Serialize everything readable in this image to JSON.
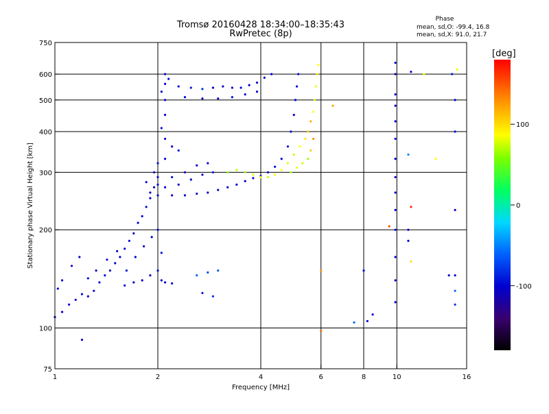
{
  "title": "Tromsø 20160428 18:34:00–18:35:43",
  "subtitle": "RwPretec (8p)",
  "stats": {
    "heading": "Phase",
    "line_o": "mean, sd,O: -99.4, 16.8",
    "line_x": "mean, sd,X:  91.0, 21.7"
  },
  "chart_data": {
    "type": "scatter",
    "xlabel": "Frequency [MHz]",
    "ylabel": "Stationary phase Virtual Height [km]",
    "x_scale": "log",
    "y_scale": "log",
    "xlim": [
      1,
      16
    ],
    "ylim": [
      75,
      750
    ],
    "x_ticks": [
      {
        "value": 1,
        "label": "1"
      },
      {
        "value": 2,
        "label": "2"
      },
      {
        "value": 4,
        "label": "4"
      },
      {
        "value": 6,
        "label": "6"
      },
      {
        "value": 8,
        "label": "8"
      },
      {
        "value": 10,
        "label": "10"
      },
      {
        "value": 16,
        "label": "16"
      }
    ],
    "y_ticks": [
      {
        "value": 75,
        "label": "75"
      },
      {
        "value": 100,
        "label": "100"
      },
      {
        "value": 200,
        "label": "200"
      },
      {
        "value": 300,
        "label": "300"
      },
      {
        "value": 400,
        "label": "400"
      },
      {
        "value": 500,
        "label": "500"
      },
      {
        "value": 600,
        "label": "600"
      },
      {
        "value": 750,
        "label": "750"
      }
    ],
    "grid": true,
    "grid_x": [
      2,
      4,
      6,
      8,
      10
    ],
    "grid_y": [
      100,
      200,
      300,
      400,
      500,
      600
    ],
    "colorbar": {
      "label": "[deg]",
      "range": [
        -180,
        180
      ],
      "ticks": [
        {
          "value": 100,
          "label": "100"
        },
        {
          "value": 0,
          "label": "0"
        },
        {
          "value": -100,
          "label": "-100"
        }
      ]
    },
    "series": [
      {
        "points": [
          [
            1.0,
            108,
            -100
          ],
          [
            1.05,
            112,
            -105
          ],
          [
            1.1,
            118,
            -100
          ],
          [
            1.15,
            122,
            -110
          ],
          [
            1.2,
            127,
            -95
          ],
          [
            1.25,
            125,
            -100
          ],
          [
            1.3,
            130,
            -105
          ],
          [
            1.35,
            138,
            -100
          ],
          [
            1.4,
            145,
            -95
          ],
          [
            1.45,
            150,
            -110
          ],
          [
            1.5,
            158,
            -100
          ],
          [
            1.55,
            165,
            -105
          ],
          [
            1.6,
            175,
            -100
          ],
          [
            1.65,
            185,
            -95
          ],
          [
            1.7,
            195,
            -100
          ],
          [
            1.75,
            210,
            -105
          ],
          [
            1.8,
            220,
            -100
          ],
          [
            1.85,
            235,
            -95
          ],
          [
            1.9,
            250,
            -100
          ],
          [
            1.95,
            270,
            -105
          ],
          [
            2.0,
            290,
            -100
          ],
          [
            1.05,
            140,
            -100
          ],
          [
            1.12,
            155,
            -110
          ],
          [
            1.18,
            165,
            -100
          ],
          [
            1.02,
            132,
            -95
          ],
          [
            1.25,
            142,
            -100
          ],
          [
            1.32,
            150,
            -105
          ],
          [
            1.42,
            162,
            -100
          ],
          [
            1.52,
            172,
            -100
          ],
          [
            1.62,
            150,
            -95
          ],
          [
            1.72,
            165,
            -100
          ],
          [
            1.82,
            178,
            -105
          ],
          [
            1.92,
            190,
            -100
          ],
          [
            2.0,
            200,
            -100
          ],
          [
            2.05,
            170,
            -95
          ],
          [
            2.0,
            150,
            -100
          ],
          [
            1.9,
            145,
            -105
          ],
          [
            1.8,
            140,
            -100
          ],
          [
            1.7,
            138,
            -100
          ],
          [
            1.6,
            135,
            -95
          ],
          [
            2.05,
            140,
            -100
          ],
          [
            2.1,
            138,
            -100
          ],
          [
            2.2,
            137,
            -105
          ],
          [
            2.1,
            600,
            -100
          ],
          [
            2.15,
            580,
            -95
          ],
          [
            2.1,
            560,
            -100
          ],
          [
            2.05,
            530,
            -105
          ],
          [
            2.1,
            500,
            -100
          ],
          [
            2.1,
            450,
            -100
          ],
          [
            2.05,
            410,
            -95
          ],
          [
            2.1,
            380,
            -100
          ],
          [
            2.2,
            360,
            -105
          ],
          [
            2.3,
            350,
            -100
          ],
          [
            2.1,
            330,
            -100
          ],
          [
            2.0,
            320,
            -95
          ],
          [
            2.3,
            550,
            -100
          ],
          [
            2.5,
            545,
            -90
          ],
          [
            2.7,
            540,
            -80
          ],
          [
            2.9,
            545,
            -100
          ],
          [
            3.1,
            550,
            -105
          ],
          [
            3.3,
            545,
            -100
          ],
          [
            3.5,
            545,
            -95
          ],
          [
            3.7,
            555,
            -100
          ],
          [
            3.9,
            565,
            -100
          ],
          [
            4.1,
            585,
            -105
          ],
          [
            4.3,
            600,
            -100
          ],
          [
            2.4,
            510,
            -100
          ],
          [
            2.7,
            505,
            -105
          ],
          [
            3.0,
            505,
            -100
          ],
          [
            3.3,
            510,
            -95
          ],
          [
            3.6,
            520,
            -100
          ],
          [
            3.9,
            530,
            -100
          ],
          [
            2.0,
            255,
            -100
          ],
          [
            2.2,
            255,
            -105
          ],
          [
            2.4,
            255,
            -100
          ],
          [
            2.6,
            258,
            -95
          ],
          [
            2.8,
            260,
            -100
          ],
          [
            3.0,
            265,
            -100
          ],
          [
            3.2,
            270,
            -105
          ],
          [
            3.4,
            275,
            -100
          ],
          [
            3.6,
            282,
            -100
          ],
          [
            3.8,
            288,
            -95
          ],
          [
            4.0,
            292,
            -100
          ],
          [
            4.2,
            300,
            -105
          ],
          [
            4.4,
            312,
            -100
          ],
          [
            4.6,
            330,
            -100
          ],
          [
            4.8,
            360,
            -95
          ],
          [
            4.9,
            400,
            -100
          ],
          [
            5.0,
            450,
            -105
          ],
          [
            5.05,
            500,
            -100
          ],
          [
            5.1,
            550,
            -100
          ],
          [
            5.15,
            600,
            -95
          ],
          [
            2.1,
            270,
            -100
          ],
          [
            2.3,
            275,
            -105
          ],
          [
            2.5,
            285,
            -100
          ],
          [
            2.7,
            295,
            -100
          ],
          [
            2.9,
            300,
            -95
          ],
          [
            2.2,
            290,
            -100
          ],
          [
            2.4,
            300,
            -105
          ],
          [
            2.6,
            315,
            -100
          ],
          [
            2.8,
            320,
            -100
          ],
          [
            1.9,
            260,
            -100
          ],
          [
            1.85,
            280,
            -105
          ],
          [
            1.95,
            300,
            -100
          ],
          [
            2.0,
            275,
            -95
          ],
          [
            2.6,
            145,
            -60
          ],
          [
            2.8,
            148,
            -70
          ],
          [
            3.0,
            150,
            -65
          ],
          [
            2.9,
            125,
            -80
          ],
          [
            2.7,
            128,
            -90
          ],
          [
            1.2,
            92,
            -105
          ]
        ]
      },
      {
        "points": [
          [
            3.2,
            300,
            60
          ],
          [
            3.4,
            305,
            80
          ],
          [
            3.6,
            300,
            70
          ],
          [
            3.8,
            295,
            90
          ],
          [
            4.0,
            290,
            100
          ],
          [
            4.2,
            290,
            85
          ],
          [
            4.4,
            295,
            95
          ],
          [
            4.6,
            305,
            100
          ],
          [
            4.8,
            320,
            90
          ],
          [
            5.0,
            340,
            80
          ],
          [
            5.2,
            360,
            100
          ],
          [
            5.4,
            380,
            110
          ],
          [
            5.5,
            400,
            120
          ],
          [
            5.6,
            430,
            130
          ],
          [
            5.7,
            460,
            100
          ],
          [
            5.75,
            500,
            90
          ],
          [
            5.8,
            550,
            95
          ],
          [
            5.85,
            600,
            110
          ],
          [
            5.9,
            640,
            100
          ],
          [
            5.7,
            380,
            140
          ],
          [
            5.6,
            350,
            120
          ],
          [
            5.5,
            330,
            70
          ],
          [
            5.3,
            320,
            85
          ],
          [
            5.1,
            310,
            95
          ],
          [
            4.9,
            300,
            75
          ],
          [
            6.5,
            480,
            130
          ],
          [
            6.0,
            150,
            140
          ],
          [
            6.0,
            98,
            150
          ],
          [
            9.5,
            205,
            160
          ],
          [
            11.0,
            235,
            170
          ],
          [
            11.0,
            160,
            110
          ],
          [
            13.0,
            330,
            100
          ],
          [
            15.0,
            620,
            95
          ],
          [
            12.0,
            600,
            90
          ]
        ]
      },
      {
        "points": [
          [
            9.9,
            650,
            -100
          ],
          [
            9.9,
            600,
            -110
          ],
          [
            9.9,
            520,
            -100
          ],
          [
            9.9,
            480,
            -105
          ],
          [
            9.9,
            430,
            -100
          ],
          [
            9.9,
            380,
            -95
          ],
          [
            9.9,
            330,
            -100
          ],
          [
            9.9,
            290,
            -105
          ],
          [
            9.9,
            260,
            -100
          ],
          [
            9.9,
            230,
            -100
          ],
          [
            9.9,
            200,
            -95
          ],
          [
            9.9,
            165,
            -100
          ],
          [
            9.9,
            140,
            -105
          ],
          [
            9.9,
            120,
            -100
          ],
          [
            10.8,
            340,
            -50
          ],
          [
            10.8,
            200,
            -110
          ],
          [
            10.8,
            185,
            -100
          ],
          [
            11.0,
            610,
            -100
          ],
          [
            14.5,
            600,
            -90
          ],
          [
            14.8,
            500,
            -100
          ],
          [
            14.8,
            230,
            -110
          ],
          [
            14.8,
            145,
            -100
          ],
          [
            14.8,
            130,
            -60
          ],
          [
            14.8,
            118,
            -80
          ],
          [
            14.8,
            400,
            -100
          ],
          [
            14.2,
            145,
            -95
          ],
          [
            8.5,
            110,
            -100
          ],
          [
            8.2,
            105,
            -100
          ],
          [
            7.5,
            104,
            -60
          ],
          [
            8.0,
            150,
            -100
          ]
        ]
      }
    ]
  }
}
